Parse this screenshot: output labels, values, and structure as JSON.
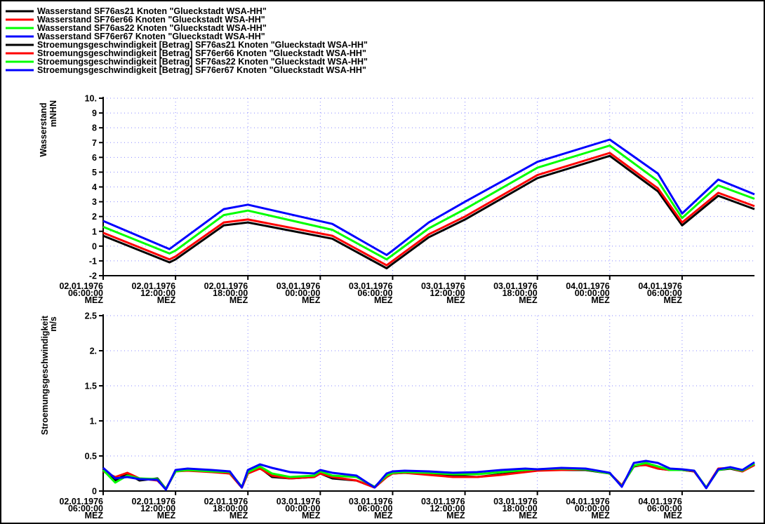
{
  "chart_data": [
    {
      "type": "line",
      "ylabel": "Wasserstand",
      "yunit": "mNHN",
      "ylim": [
        -2,
        10
      ],
      "y_ticks": [
        "-2",
        "-1",
        "0",
        "1",
        "2",
        "3",
        "4",
        "5",
        "6",
        "7",
        "8",
        "9",
        "10."
      ],
      "x_ticks": [
        {
          "date": "02.01.1976",
          "time": "06:00:00",
          "tz": "MEZ"
        },
        {
          "date": "02.01.1976",
          "time": "12:00:00",
          "tz": "MEZ"
        },
        {
          "date": "02.01.1976",
          "time": "18:00:00",
          "tz": "MEZ"
        },
        {
          "date": "03.01.1976",
          "time": "00:00:00",
          "tz": "MEZ"
        },
        {
          "date": "03.01.1976",
          "time": "06:00:00",
          "tz": "MEZ"
        },
        {
          "date": "03.01.1976",
          "time": "12:00:00",
          "tz": "MEZ"
        },
        {
          "date": "03.01.1976",
          "time": "18:00:00",
          "tz": "MEZ"
        },
        {
          "date": "04.01.1976",
          "time": "00:00:00",
          "tz": "MEZ"
        },
        {
          "date": "04.01.1976",
          "time": "06:00:00",
          "tz": "MEZ"
        }
      ],
      "grid": true,
      "x_hours": [
        0,
        5.5,
        6,
        10,
        12,
        19,
        23.5,
        24,
        27,
        30,
        36,
        42,
        46,
        48,
        51,
        54
      ],
      "series": [
        {
          "name": "Wasserstand SF76as21 Knoten \"Glueckstadt WSA-HH\"",
          "color": "#000000",
          "values": [
            0.7,
            -1.1,
            -0.9,
            1.4,
            1.6,
            0.5,
            -1.5,
            -1.2,
            0.6,
            1.8,
            4.6,
            6.1,
            3.7,
            1.4,
            3.4,
            2.5
          ]
        },
        {
          "name": "Wasserstand SF76er66 Knoten \"Glueckstadt WSA-HH\"",
          "color": "#ff0000",
          "values": [
            0.9,
            -0.9,
            -0.7,
            1.6,
            1.8,
            0.7,
            -1.3,
            -1.0,
            0.8,
            2.0,
            4.8,
            6.3,
            3.9,
            1.6,
            3.6,
            2.7
          ]
        },
        {
          "name": "Wasserstand SF76as22 Knoten \"Glueckstadt WSA-HH\"",
          "color": "#00ff00",
          "values": [
            1.3,
            -0.5,
            -0.3,
            2.1,
            2.4,
            1.1,
            -0.9,
            -0.6,
            1.2,
            2.5,
            5.3,
            6.8,
            4.4,
            1.9,
            4.1,
            3.2
          ]
        },
        {
          "name": "Wasserstand SF76er67 Knoten \"Glueckstadt WSA-HH\"",
          "color": "#0000ff",
          "values": [
            1.7,
            -0.2,
            0.1,
            2.5,
            2.8,
            1.5,
            -0.6,
            -0.3,
            1.6,
            3.0,
            5.7,
            7.2,
            4.9,
            2.2,
            4.5,
            3.5
          ]
        }
      ]
    },
    {
      "type": "line",
      "ylabel": "Stroemungsgeschwindigkeit",
      "yunit": "m/s",
      "ylim": [
        0,
        2.5
      ],
      "y_ticks": [
        "0",
        "0.5",
        "1.",
        "1.5",
        "2.",
        "2.5"
      ],
      "x_ticks": [
        {
          "date": "02.01.1976",
          "time": "06:00:00",
          "tz": "MEZ"
        },
        {
          "date": "02.01.1976",
          "time": "12:00:00",
          "tz": "MEZ"
        },
        {
          "date": "02.01.1976",
          "time": "18:00:00",
          "tz": "MEZ"
        },
        {
          "date": "03.01.1976",
          "time": "00:00:00",
          "tz": "MEZ"
        },
        {
          "date": "03.01.1976",
          "time": "06:00:00",
          "tz": "MEZ"
        },
        {
          "date": "03.01.1976",
          "time": "12:00:00",
          "tz": "MEZ"
        },
        {
          "date": "03.01.1976",
          "time": "18:00:00",
          "tz": "MEZ"
        },
        {
          "date": "04.01.1976",
          "time": "00:00:00",
          "tz": "MEZ"
        },
        {
          "date": "04.01.1976",
          "time": "06:00:00",
          "tz": "MEZ"
        }
      ],
      "grid": true,
      "x_hours": [
        0,
        1,
        2,
        3,
        4.5,
        5.2,
        6,
        7,
        9,
        10.5,
        11.5,
        12,
        13,
        14,
        15.5,
        17.5,
        18,
        19,
        21,
        22.5,
        23.5,
        24,
        25,
        27,
        29,
        31,
        33,
        35,
        36,
        38,
        40,
        42,
        43,
        44,
        45,
        46,
        47,
        48,
        49,
        50,
        51,
        52,
        53,
        54
      ],
      "series": [
        {
          "name": "Stroemungsgeschwindigkeit [Betrag] SF76as21 Knoten \"Glueckstadt WSA-HH\"",
          "color": "#000000",
          "values": [
            0.3,
            0.15,
            0.25,
            0.15,
            0.18,
            0.03,
            0.28,
            0.31,
            0.28,
            0.25,
            0.05,
            0.25,
            0.33,
            0.2,
            0.18,
            0.2,
            0.25,
            0.18,
            0.15,
            0.05,
            0.2,
            0.25,
            0.26,
            0.24,
            0.22,
            0.2,
            0.24,
            0.28,
            0.3,
            0.3,
            0.3,
            0.25,
            0.08,
            0.35,
            0.38,
            0.32,
            0.3,
            0.3,
            0.28,
            0.05,
            0.3,
            0.32,
            0.28,
            0.38
          ]
        },
        {
          "name": "Stroemungsgeschwindigkeit [Betrag] SF76er66 Knoten \"Glueckstadt WSA-HH\"",
          "color": "#ff0000",
          "values": [
            0.28,
            0.2,
            0.26,
            0.18,
            0.15,
            0.03,
            0.28,
            0.29,
            0.27,
            0.25,
            0.05,
            0.25,
            0.32,
            0.22,
            0.18,
            0.2,
            0.25,
            0.2,
            0.15,
            0.05,
            0.2,
            0.25,
            0.26,
            0.23,
            0.2,
            0.2,
            0.23,
            0.27,
            0.29,
            0.3,
            0.31,
            0.25,
            0.08,
            0.36,
            0.37,
            0.32,
            0.3,
            0.3,
            0.28,
            0.05,
            0.32,
            0.33,
            0.28,
            0.37
          ]
        },
        {
          "name": "Stroemungsgeschwindigkeit [Betrag] SF76as22 Knoten \"Glueckstadt WSA-HH\"",
          "color": "#00ff00",
          "values": [
            0.3,
            0.12,
            0.22,
            0.18,
            0.17,
            0.03,
            0.28,
            0.3,
            0.28,
            0.27,
            0.06,
            0.27,
            0.35,
            0.25,
            0.2,
            0.22,
            0.28,
            0.22,
            0.2,
            0.06,
            0.22,
            0.26,
            0.27,
            0.26,
            0.24,
            0.24,
            0.27,
            0.3,
            0.31,
            0.32,
            0.31,
            0.25,
            0.07,
            0.36,
            0.4,
            0.35,
            0.3,
            0.3,
            0.29,
            0.05,
            0.3,
            0.33,
            0.29,
            0.39
          ]
        },
        {
          "name": "Stroemungsgeschwindigkeit [Betrag] SF76er67 Knoten \"Glueckstadt WSA-HH\"",
          "color": "#0000ff",
          "values": [
            0.33,
            0.18,
            0.2,
            0.17,
            0.16,
            0.02,
            0.3,
            0.32,
            0.3,
            0.28,
            0.05,
            0.3,
            0.38,
            0.33,
            0.27,
            0.25,
            0.3,
            0.26,
            0.22,
            0.05,
            0.25,
            0.28,
            0.29,
            0.28,
            0.26,
            0.27,
            0.3,
            0.32,
            0.31,
            0.33,
            0.32,
            0.26,
            0.06,
            0.4,
            0.43,
            0.4,
            0.32,
            0.31,
            0.29,
            0.04,
            0.31,
            0.34,
            0.3,
            0.41
          ]
        }
      ]
    }
  ]
}
